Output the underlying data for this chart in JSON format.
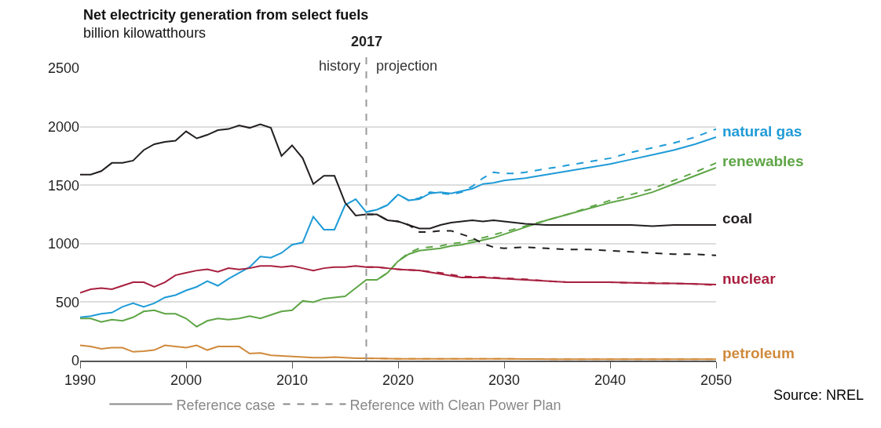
{
  "chart_data": {
    "type": "line",
    "title": "Net electricity generation from select fuels",
    "subtitle": "billion kilowatthours",
    "xlim": [
      1990,
      2050
    ],
    "xticks": [
      1990,
      2000,
      2010,
      2020,
      2030,
      2040,
      2050
    ],
    "ylim": [
      0,
      2500
    ],
    "yticks": [
      0,
      500,
      1000,
      1500,
      2000,
      2500
    ],
    "grid": "y",
    "legend": "right",
    "marker": "none",
    "ref_lines": [
      {
        "axis": "x",
        "value": 2017,
        "label": "2017",
        "color": "#999999",
        "line_style": "dashed"
      }
    ],
    "annotations": [
      "history",
      "projection",
      "Reference case",
      "Reference with Clean Power Plan",
      "Source: NREL"
    ],
    "series": [
      {
        "name": "natural gas",
        "color": "#1f9bd7",
        "line_style": "solid",
        "x": [
          1990,
          1991,
          1992,
          1993,
          1994,
          1995,
          1996,
          1997,
          1998,
          1999,
          2000,
          2001,
          2002,
          2003,
          2004,
          2005,
          2006,
          2007,
          2008,
          2009,
          2010,
          2011,
          2012,
          2013,
          2014,
          2015,
          2016,
          2017,
          2018,
          2019,
          2020,
          2021,
          2022,
          2023,
          2024,
          2025,
          2026,
          2027,
          2028,
          2029,
          2030,
          2032,
          2034,
          2036,
          2038,
          2040,
          2042,
          2044,
          2046,
          2048,
          2050
        ],
        "values": [
          370,
          380,
          400,
          410,
          460,
          490,
          460,
          490,
          540,
          560,
          600,
          630,
          680,
          640,
          700,
          750,
          800,
          890,
          880,
          920,
          990,
          1010,
          1230,
          1120,
          1120,
          1330,
          1380,
          1270,
          1290,
          1330,
          1420,
          1370,
          1380,
          1430,
          1440,
          1430,
          1450,
          1470,
          1510,
          1520,
          1540,
          1560,
          1590,
          1620,
          1650,
          1680,
          1720,
          1760,
          1800,
          1850,
          1910
        ]
      },
      {
        "color": "#1f9bd7",
        "line_style": "dashed",
        "x": [
          2017,
          2018,
          2019,
          2020,
          2021,
          2022,
          2023,
          2024,
          2025,
          2026,
          2027,
          2028,
          2029,
          2030,
          2031,
          2032,
          2034,
          2036,
          2038,
          2040,
          2042,
          2044,
          2046,
          2048,
          2050
        ],
        "values": [
          1270,
          1290,
          1330,
          1420,
          1370,
          1390,
          1440,
          1430,
          1420,
          1440,
          1490,
          1560,
          1610,
          1600,
          1600,
          1610,
          1640,
          1670,
          1700,
          1730,
          1780,
          1820,
          1860,
          1910,
          1980
        ]
      },
      {
        "name": "renewables",
        "color": "#5ea546",
        "line_style": "solid",
        "x": [
          1990,
          1991,
          1992,
          1993,
          1994,
          1995,
          1996,
          1997,
          1998,
          1999,
          2000,
          2001,
          2002,
          2003,
          2004,
          2005,
          2006,
          2007,
          2008,
          2009,
          2010,
          2011,
          2012,
          2013,
          2014,
          2015,
          2016,
          2017,
          2018,
          2019,
          2020,
          2021,
          2022,
          2023,
          2024,
          2025,
          2026,
          2027,
          2028,
          2029,
          2030,
          2032,
          2034,
          2036,
          2038,
          2040,
          2042,
          2044,
          2046,
          2048,
          2050
        ],
        "values": [
          360,
          360,
          330,
          350,
          340,
          370,
          420,
          430,
          400,
          400,
          360,
          290,
          340,
          360,
          350,
          360,
          380,
          360,
          390,
          420,
          430,
          510,
          500,
          530,
          540,
          550,
          620,
          690,
          690,
          750,
          850,
          910,
          940,
          950,
          960,
          980,
          990,
          1010,
          1030,
          1050,
          1080,
          1140,
          1200,
          1250,
          1300,
          1350,
          1390,
          1440,
          1510,
          1580,
          1650
        ]
      },
      {
        "color": "#5ea546",
        "line_style": "dashed",
        "x": [
          2017,
          2018,
          2019,
          2020,
          2021,
          2022,
          2023,
          2024,
          2025,
          2026,
          2028,
          2030,
          2032,
          2034,
          2036,
          2038,
          2040,
          2042,
          2044,
          2046,
          2048,
          2050
        ],
        "values": [
          690,
          690,
          750,
          850,
          920,
          960,
          970,
          980,
          1000,
          1010,
          1050,
          1100,
          1150,
          1200,
          1250,
          1310,
          1370,
          1420,
          1470,
          1540,
          1610,
          1690
        ]
      },
      {
        "name": "coal",
        "color": "#231f20",
        "line_style": "solid",
        "x": [
          1990,
          1991,
          1992,
          1993,
          1994,
          1995,
          1996,
          1997,
          1998,
          1999,
          2000,
          2001,
          2002,
          2003,
          2004,
          2005,
          2006,
          2007,
          2008,
          2009,
          2010,
          2011,
          2012,
          2013,
          2014,
          2015,
          2016,
          2017,
          2018,
          2019,
          2020,
          2021,
          2022,
          2023,
          2024,
          2025,
          2026,
          2027,
          2028,
          2029,
          2030,
          2032,
          2034,
          2036,
          2038,
          2040,
          2042,
          2044,
          2046,
          2048,
          2050
        ],
        "values": [
          1590,
          1590,
          1620,
          1690,
          1690,
          1710,
          1800,
          1850,
          1870,
          1880,
          1960,
          1900,
          1930,
          1970,
          1980,
          2010,
          1990,
          2020,
          1990,
          1750,
          1840,
          1730,
          1510,
          1580,
          1580,
          1350,
          1240,
          1250,
          1250,
          1200,
          1190,
          1160,
          1130,
          1130,
          1160,
          1180,
          1190,
          1200,
          1190,
          1200,
          1190,
          1170,
          1160,
          1160,
          1160,
          1160,
          1160,
          1150,
          1160,
          1160,
          1160
        ]
      },
      {
        "color": "#231f20",
        "line_style": "dashed",
        "x": [
          2017,
          2018,
          2019,
          2020,
          2021,
          2022,
          2023,
          2024,
          2025,
          2026,
          2027,
          2028,
          2029,
          2030,
          2032,
          2034,
          2036,
          2038,
          2040,
          2042,
          2044,
          2046,
          2048,
          2050
        ],
        "values": [
          1250,
          1250,
          1200,
          1190,
          1160,
          1100,
          1100,
          1110,
          1110,
          1080,
          1050,
          1000,
          970,
          960,
          970,
          960,
          950,
          950,
          940,
          930,
          920,
          910,
          910,
          900
        ]
      },
      {
        "name": "nuclear",
        "color": "#a8203f",
        "line_style": "solid",
        "x": [
          1990,
          1991,
          1992,
          1993,
          1994,
          1995,
          1996,
          1997,
          1998,
          1999,
          2000,
          2001,
          2002,
          2003,
          2004,
          2005,
          2006,
          2007,
          2008,
          2009,
          2010,
          2011,
          2012,
          2013,
          2014,
          2015,
          2016,
          2017,
          2018,
          2019,
          2020,
          2022,
          2024,
          2026,
          2028,
          2030,
          2032,
          2034,
          2036,
          2038,
          2040,
          2042,
          2044,
          2046,
          2048,
          2050
        ],
        "values": [
          580,
          610,
          620,
          610,
          640,
          670,
          670,
          630,
          670,
          730,
          750,
          770,
          780,
          760,
          790,
          780,
          790,
          810,
          810,
          800,
          810,
          790,
          770,
          790,
          800,
          800,
          810,
          800,
          800,
          790,
          780,
          770,
          740,
          710,
          710,
          700,
          690,
          680,
          670,
          670,
          670,
          665,
          660,
          660,
          655,
          650
        ]
      },
      {
        "color": "#a8203f",
        "line_style": "dashed",
        "x": [
          2017,
          2018,
          2019,
          2020,
          2022,
          2024,
          2026,
          2028,
          2030,
          2032,
          2034,
          2036,
          2038,
          2040,
          2042,
          2044,
          2046,
          2048,
          2050
        ],
        "values": [
          800,
          800,
          790,
          780,
          770,
          750,
          720,
          715,
          705,
          695,
          680,
          670,
          670,
          670,
          665,
          665,
          660,
          655,
          645
        ]
      },
      {
        "name": "petroleum",
        "color": "#d08a3c",
        "line_style": "solid",
        "x": [
          1990,
          1991,
          1992,
          1993,
          1994,
          1995,
          1996,
          1997,
          1998,
          1999,
          2000,
          2001,
          2002,
          2003,
          2004,
          2005,
          2006,
          2007,
          2008,
          2009,
          2010,
          2011,
          2012,
          2013,
          2014,
          2015,
          2016,
          2017,
          2020,
          2025,
          2030,
          2035,
          2040,
          2045,
          2050
        ],
        "values": [
          130,
          120,
          100,
          110,
          110,
          75,
          80,
          90,
          130,
          120,
          110,
          130,
          90,
          120,
          120,
          120,
          60,
          65,
          45,
          40,
          35,
          30,
          25,
          25,
          30,
          25,
          20,
          20,
          15,
          15,
          15,
          12,
          12,
          12,
          12
        ]
      },
      {
        "color": "#d08a3c",
        "line_style": "dashed",
        "x": [
          2017,
          2020,
          2025,
          2030,
          2035,
          2040,
          2045,
          2050
        ],
        "values": [
          20,
          15,
          15,
          15,
          12,
          12,
          12,
          12
        ]
      }
    ]
  }
}
